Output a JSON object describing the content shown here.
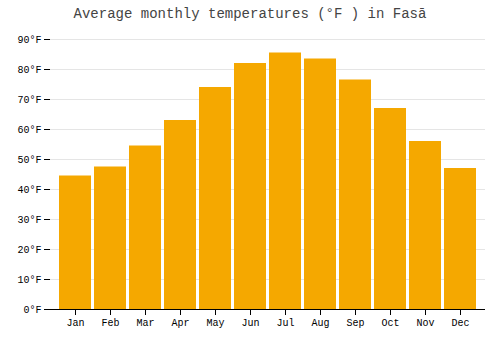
{
  "chart_data": {
    "type": "bar",
    "title": "Average monthly temperatures (°F ) in Fasā",
    "categories": [
      "Jan",
      "Feb",
      "Mar",
      "Apr",
      "May",
      "Jun",
      "Jul",
      "Aug",
      "Sep",
      "Oct",
      "Nov",
      "Dec"
    ],
    "values": [
      44.5,
      47.5,
      54.5,
      63,
      74,
      82,
      85.5,
      83.5,
      76.5,
      67,
      56,
      47
    ],
    "color": "#F5A800",
    "ylim": [
      0,
      90
    ],
    "yticks": [
      {
        "value": 0,
        "label": "0°F"
      },
      {
        "value": 10,
        "label": "10°F"
      },
      {
        "value": 20,
        "label": "20°F"
      },
      {
        "value": 30,
        "label": "30°F"
      },
      {
        "value": 40,
        "label": "40°F"
      },
      {
        "value": 50,
        "label": "50°F"
      },
      {
        "value": 60,
        "label": "60°F"
      },
      {
        "value": 70,
        "label": "70°F"
      },
      {
        "value": 80,
        "label": "80°F"
      },
      {
        "value": 90,
        "label": "90°F"
      }
    ],
    "grid": true
  }
}
